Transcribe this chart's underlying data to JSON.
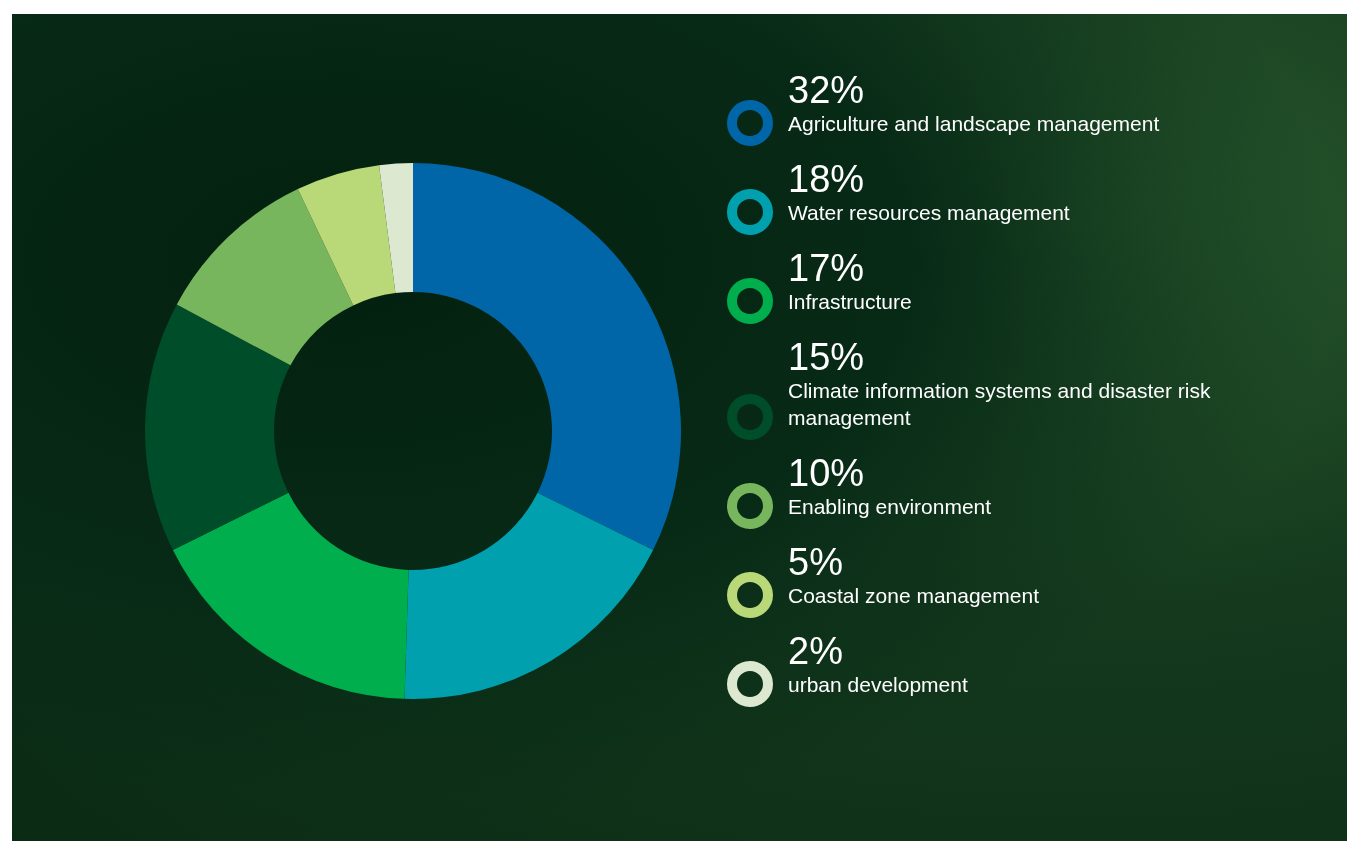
{
  "chart_data": {
    "type": "donut",
    "categories": [
      "Agriculture and landscape management",
      "Water resources management",
      "Infrastructure",
      "Climate information systems and disaster risk management",
      "Enabling environment",
      "Coastal zone management",
      "urban development"
    ],
    "values": [
      32,
      18,
      17,
      15,
      10,
      5,
      2
    ],
    "value_labels": [
      "32%",
      "18%",
      "17%",
      "15%",
      "10%",
      "5%",
      "2%"
    ],
    "colors": [
      "#0066a8",
      "#00a0ae",
      "#00ae4d",
      "#004d2a",
      "#78b65e",
      "#b9d878",
      "#dde8d0"
    ],
    "legend": "right"
  }
}
